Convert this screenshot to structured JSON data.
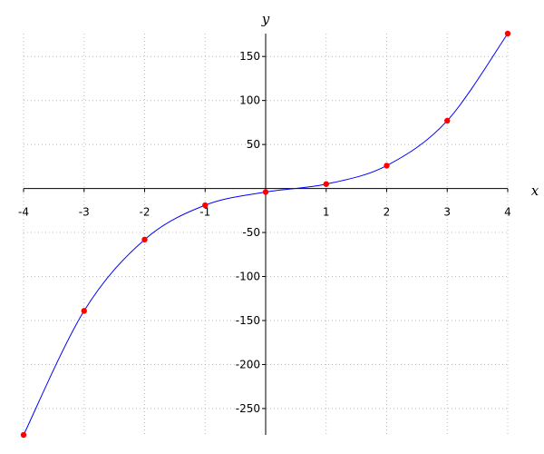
{
  "chart_data": {
    "type": "line",
    "xlabel": "x",
    "ylabel": "y",
    "x": [
      -4,
      -3,
      -2,
      -1,
      0,
      1,
      2,
      3,
      4
    ],
    "series": [
      {
        "color": "#0000ff",
        "marker_color": "#ff0000",
        "values": [
          -280,
          -139,
          -58,
          -19,
          -4,
          5,
          26,
          77,
          176
        ]
      }
    ],
    "xlim": [
      -4,
      4
    ],
    "ylim": [
      -280,
      176
    ],
    "xticks": [
      -4,
      -3,
      -2,
      -1,
      1,
      2,
      3,
      4
    ],
    "yticks": [
      -250,
      -200,
      -150,
      -100,
      -50,
      50,
      100,
      150
    ],
    "grid": true
  }
}
